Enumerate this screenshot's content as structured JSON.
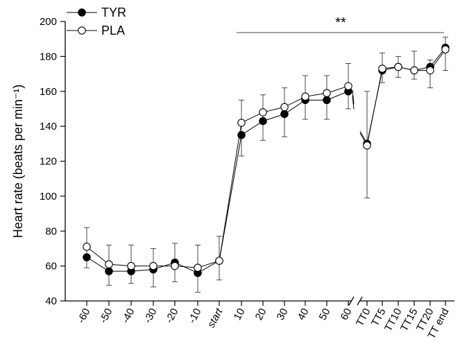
{
  "chart_data": {
    "type": "line",
    "ylabel": "Heart rate (beats per min⁻¹)",
    "ylim": [
      40,
      200
    ],
    "yticks": [
      40,
      60,
      80,
      100,
      120,
      140,
      160,
      180,
      200
    ],
    "categories": [
      "-60",
      "-50",
      "-40",
      "-30",
      "-20",
      "-10",
      "start",
      "10",
      "20",
      "30",
      "40",
      "50",
      "60",
      "TT0",
      "TT5",
      "TT10",
      "TT15",
      "TT20",
      "TT end"
    ],
    "axis_break": "between 60 and TT0",
    "series": [
      {
        "name": "TYR",
        "marker": "filled-circle",
        "color": "#000000",
        "values": [
          65,
          57,
          57,
          58,
          62,
          56,
          63,
          135,
          143,
          147,
          155,
          155,
          160,
          130,
          172,
          174,
          172,
          174,
          185
        ],
        "err_low": [
          59,
          49,
          50,
          48,
          51,
          45,
          52,
          123,
          132,
          134,
          144,
          144,
          150,
          99,
          165,
          168,
          167,
          162,
          172
        ],
        "err_high": [
          82,
          72,
          72,
          70,
          73,
          72,
          77,
          155,
          158,
          162,
          169,
          169,
          176,
          160,
          182,
          180,
          183,
          178,
          191
        ]
      },
      {
        "name": "PLA",
        "marker": "open-circle",
        "color": "#ffffff",
        "values": [
          71,
          61,
          60,
          60,
          60,
          59,
          63,
          142,
          148,
          151,
          157,
          159,
          163,
          129,
          173,
          174,
          172,
          172,
          184
        ],
        "err_low": [
          59,
          49,
          50,
          48,
          51,
          45,
          52,
          123,
          132,
          134,
          144,
          144,
          150,
          99,
          165,
          168,
          167,
          162,
          172
        ],
        "err_high": [
          82,
          72,
          72,
          70,
          73,
          72,
          77,
          155,
          158,
          162,
          169,
          169,
          176,
          160,
          182,
          180,
          183,
          178,
          191
        ]
      }
    ],
    "annotation": {
      "text": "**",
      "from_category": "10",
      "to_category": "TT20",
      "y": 195
    },
    "legend": {
      "placement": "top-left",
      "entries": [
        "TYR",
        "PLA"
      ]
    },
    "grid": false
  }
}
